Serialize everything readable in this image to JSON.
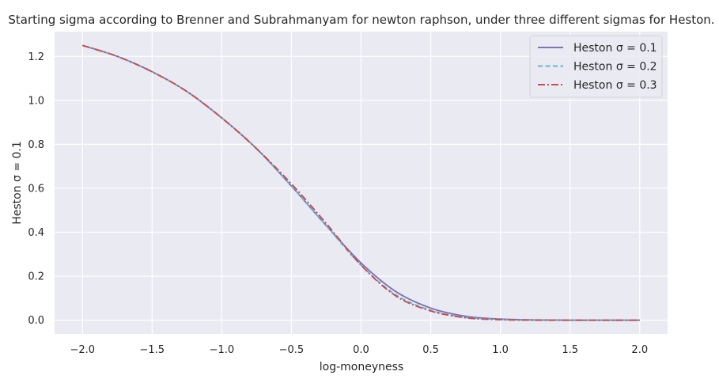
{
  "chart_data": {
    "type": "line",
    "title": "Starting sigma according to Brenner and Subrahmanyam for newton raphson, under three different sigmas for Heston.",
    "xlabel": "log-moneyness",
    "ylabel": "Heston σ = 0.1",
    "xlim": [
      -2.2,
      2.2
    ],
    "ylim": [
      -0.0625,
      1.3125
    ],
    "xticks": [
      -2.0,
      -1.5,
      -1.0,
      -0.5,
      0.0,
      0.5,
      1.0,
      1.5,
      2.0
    ],
    "xtick_labels": [
      "−2.0",
      "−1.5",
      "−1.0",
      "−0.5",
      "0.0",
      "0.5",
      "1.0",
      "1.5",
      "2.0"
    ],
    "yticks": [
      0.0,
      0.2,
      0.4,
      0.6,
      0.8,
      1.0,
      1.2
    ],
    "ytick_labels": [
      "0.0",
      "0.2",
      "0.4",
      "0.6",
      "0.8",
      "1.0",
      "1.2"
    ],
    "grid": true,
    "legend_position": "top-right",
    "x": [
      -2.0,
      -1.75,
      -1.5,
      -1.25,
      -1.0,
      -0.75,
      -0.5,
      -0.25,
      0.0,
      0.25,
      0.5,
      0.75,
      1.0,
      1.25,
      1.5,
      1.75,
      2.0
    ],
    "series": [
      {
        "name": "Heston σ = 0.1",
        "color": "#8172b3",
        "dash": "solid",
        "values": [
          1.25,
          1.2,
          1.13,
          1.04,
          0.92,
          0.78,
          0.61,
          0.43,
          0.26,
          0.13,
          0.055,
          0.018,
          0.005,
          0.001,
          0.0,
          0.0,
          0.0
        ]
      },
      {
        "name": "Heston σ = 0.2",
        "color": "#64b5cd",
        "dash": "dashed",
        "values": [
          1.25,
          1.2,
          1.13,
          1.04,
          0.92,
          0.78,
          0.61,
          0.43,
          0.25,
          0.115,
          0.045,
          0.013,
          0.003,
          0.0,
          0.0,
          0.0,
          0.0
        ]
      },
      {
        "name": "Heston σ = 0.3",
        "color": "#c44e52",
        "dash": "dashdot",
        "values": [
          1.25,
          1.2,
          1.13,
          1.04,
          0.92,
          0.78,
          0.62,
          0.44,
          0.25,
          0.11,
          0.042,
          0.011,
          0.002,
          0.0,
          0.0,
          0.0,
          0.0
        ]
      }
    ],
    "colors": {
      "plot_background": "#eaeaf2",
      "grid": "#ffffff",
      "text": "#262626"
    }
  }
}
